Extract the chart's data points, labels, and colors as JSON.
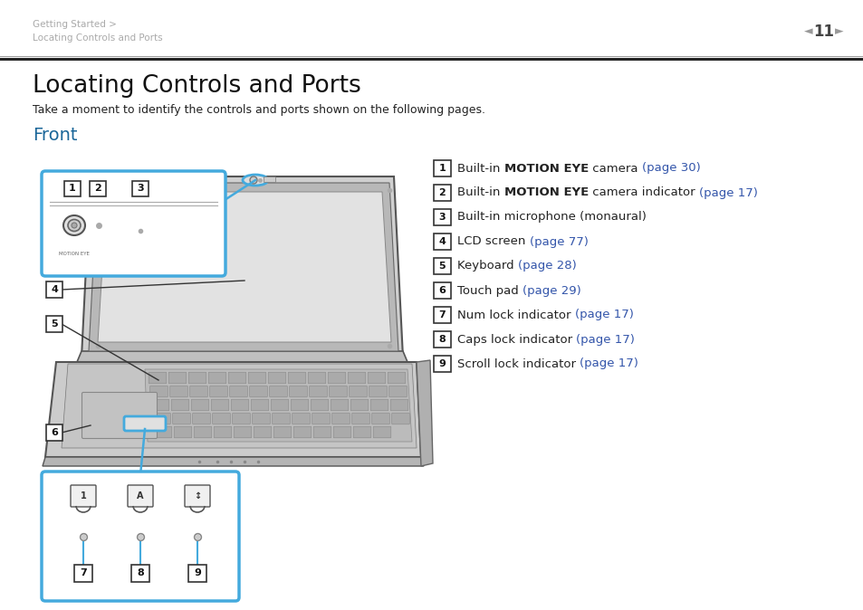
{
  "bg_color": "#ffffff",
  "header_text1": "Getting Started >",
  "header_text2": "Locating Controls and Ports",
  "header_color": "#aaaaaa",
  "page_num": "11",
  "title": "Locating Controls and Ports",
  "subtitle": "Take a moment to identify the controls and ports shown on the following pages.",
  "section": "Front",
  "section_color": "#1a6699",
  "items": [
    {
      "num": "1",
      "parts": [
        {
          "t": "Built-in ",
          "b": false,
          "c": "#222222"
        },
        {
          "t": "MOTION EYE",
          "b": true,
          "c": "#222222"
        },
        {
          "t": " camera ",
          "b": false,
          "c": "#222222"
        },
        {
          "t": "(page 30)",
          "b": false,
          "c": "#3355aa"
        }
      ]
    },
    {
      "num": "2",
      "parts": [
        {
          "t": "Built-in ",
          "b": false,
          "c": "#222222"
        },
        {
          "t": "MOTION EYE",
          "b": true,
          "c": "#222222"
        },
        {
          "t": " camera indicator ",
          "b": false,
          "c": "#222222"
        },
        {
          "t": "(page 17)",
          "b": false,
          "c": "#3355aa"
        }
      ]
    },
    {
      "num": "3",
      "parts": [
        {
          "t": "Built-in microphone (monaural)",
          "b": false,
          "c": "#222222"
        }
      ]
    },
    {
      "num": "4",
      "parts": [
        {
          "t": "LCD screen ",
          "b": false,
          "c": "#222222"
        },
        {
          "t": "(page 77)",
          "b": false,
          "c": "#3355aa"
        }
      ]
    },
    {
      "num": "5",
      "parts": [
        {
          "t": "Keyboard ",
          "b": false,
          "c": "#222222"
        },
        {
          "t": "(page 28)",
          "b": false,
          "c": "#3355aa"
        }
      ]
    },
    {
      "num": "6",
      "parts": [
        {
          "t": "Touch pad ",
          "b": false,
          "c": "#222222"
        },
        {
          "t": "(page 29)",
          "b": false,
          "c": "#3355aa"
        }
      ]
    },
    {
      "num": "7",
      "parts": [
        {
          "t": "Num lock indicator ",
          "b": false,
          "c": "#222222"
        },
        {
          "t": "(page 17)",
          "b": false,
          "c": "#3355aa"
        }
      ]
    },
    {
      "num": "8",
      "parts": [
        {
          "t": "Caps lock indicator ",
          "b": false,
          "c": "#222222"
        },
        {
          "t": "(page 17)",
          "b": false,
          "c": "#3355aa"
        }
      ]
    },
    {
      "num": "9",
      "parts": [
        {
          "t": "Scroll lock indicator ",
          "b": false,
          "c": "#222222"
        },
        {
          "t": "(page 17)",
          "b": false,
          "c": "#3355aa"
        }
      ]
    }
  ],
  "blue_color": "#44aadd",
  "dark_color": "#333333",
  "box_edge": "#444444"
}
